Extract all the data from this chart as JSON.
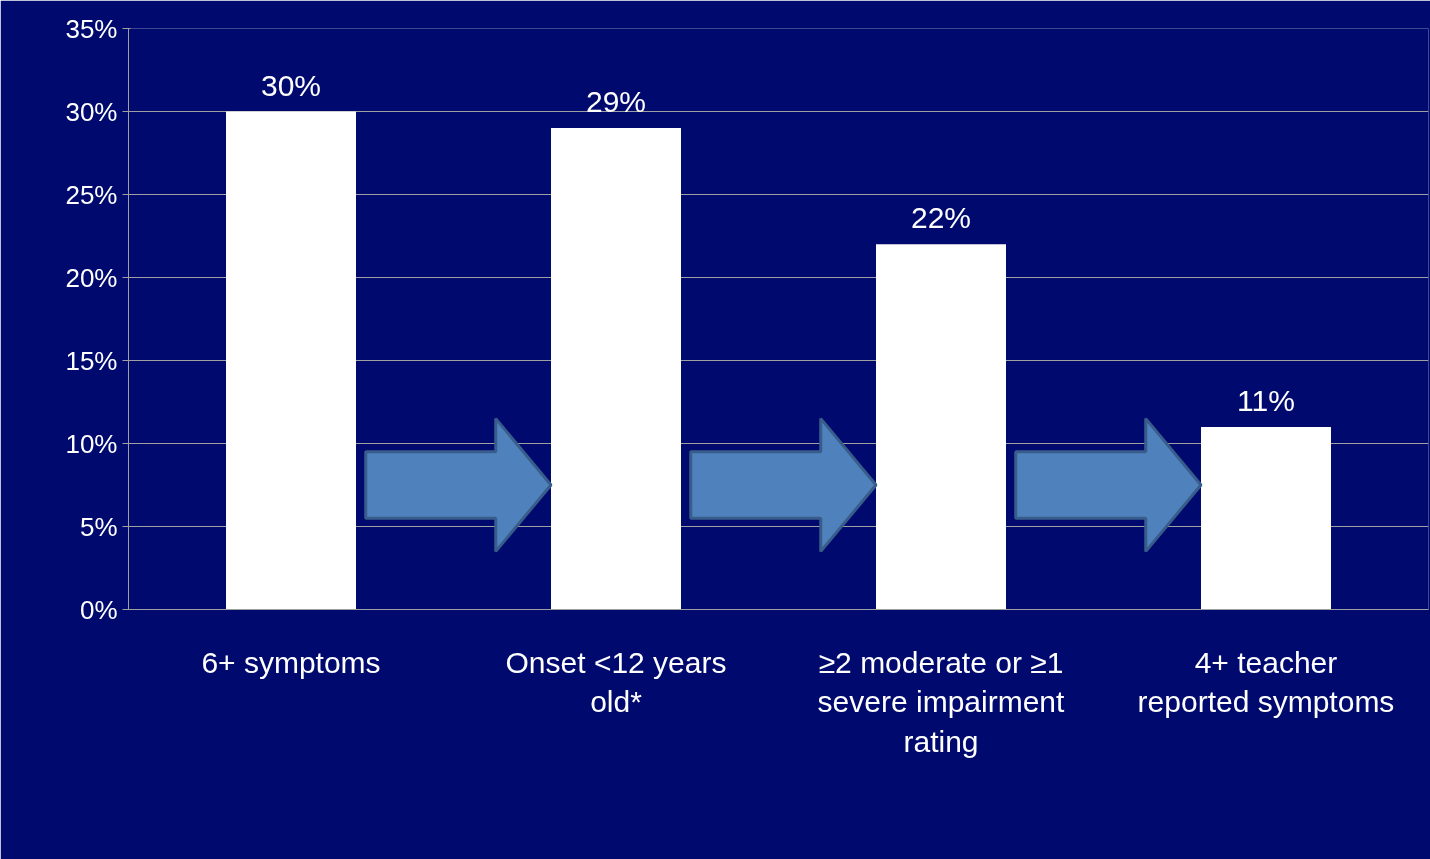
{
  "chart_data": {
    "type": "bar",
    "categories": [
      "6+ symptoms",
      "Onset <12 years old*",
      "≥2 moderate or ≥1 severe impairment rating",
      "4+ teacher reported symptoms"
    ],
    "values": [
      30,
      29,
      22,
      11
    ],
    "color": "#ffffff",
    "value_labels": [
      "30%",
      "29%",
      "22%",
      "11%"
    ],
    "ylim": [
      0,
      35
    ],
    "yticks": [
      {
        "value": 0,
        "label": "0%"
      },
      {
        "value": 5,
        "label": "5%"
      },
      {
        "value": 10,
        "label": "10%"
      },
      {
        "value": 15,
        "label": "15%"
      },
      {
        "value": 20,
        "label": "20%"
      },
      {
        "value": 25,
        "label": "25%"
      },
      {
        "value": 30,
        "label": "30%"
      },
      {
        "value": 35,
        "label": "35%"
      }
    ],
    "grid": "y"
  }
}
